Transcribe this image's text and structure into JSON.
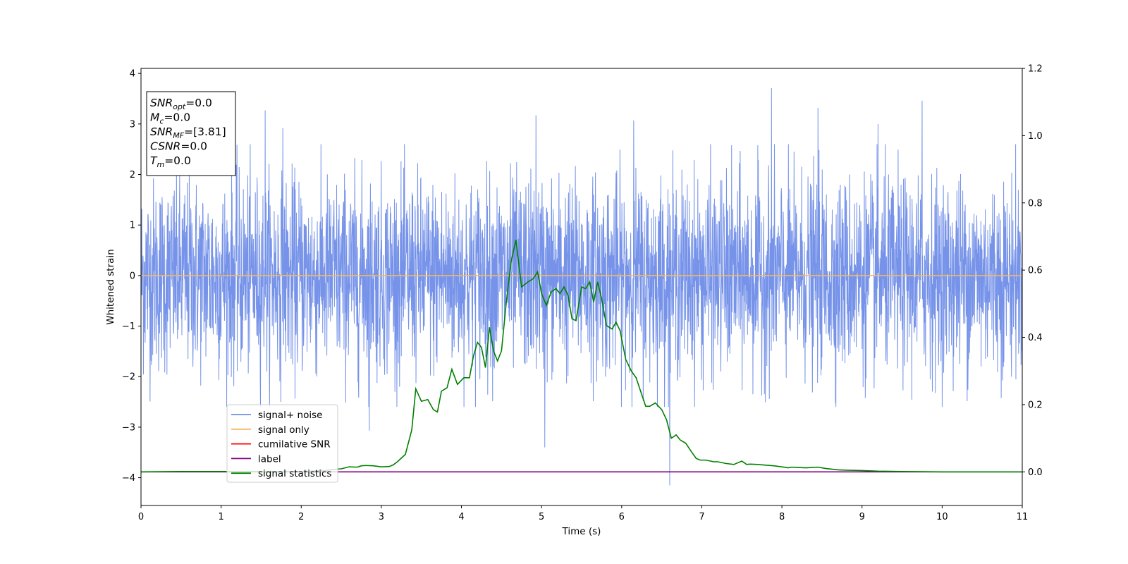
{
  "chart_data": {
    "type": "line",
    "xlabel": "Time (s)",
    "ylabel": "Whitened strain",
    "xlim": [
      0,
      11
    ],
    "ylim_left": [
      -4.55,
      4.1
    ],
    "ylim_right": [
      -0.1,
      1.2
    ],
    "x_ticks": [
      "0",
      "1",
      "2",
      "3",
      "4",
      "5",
      "6",
      "7",
      "8",
      "9",
      "10",
      "11"
    ],
    "y_ticks_left": [
      "−4",
      "−3",
      "−2",
      "−1",
      "0",
      "1",
      "2",
      "3",
      "4"
    ],
    "y_ticks_right": [
      "0.0",
      "0.2",
      "0.4",
      "0.6",
      "0.8",
      "1.0",
      "1.2"
    ],
    "colors": {
      "signal_noise": "#6f8de8",
      "signal_only": "#f5b860",
      "cumulative_snr": "#ff0000",
      "label": "#800080",
      "signal_statistics": "#008000"
    },
    "series": [
      {
        "name": "signal+ noise",
        "axis": "left",
        "description": "dense whitened noise trace, mostly within about -2.6 to 2.6",
        "envelope_range": [
          -2.6,
          2.6
        ],
        "notable_spikes": [
          {
            "x": 1.55,
            "y": 3.27
          },
          {
            "x": 1.77,
            "y": 2.92
          },
          {
            "x": 2.85,
            "y": -3.07
          },
          {
            "x": 4.93,
            "y": 3.17
          },
          {
            "x": 5.04,
            "y": -3.4
          },
          {
            "x": 6.15,
            "y": 3.07
          },
          {
            "x": 6.6,
            "y": -4.15
          },
          {
            "x": 7.87,
            "y": 3.71
          },
          {
            "x": 8.45,
            "y": 3.32
          },
          {
            "x": 9.2,
            "y": 3.0
          },
          {
            "x": 9.75,
            "y": 3.46
          },
          {
            "x": 11.0,
            "y": 2.32
          }
        ]
      },
      {
        "name": "signal only",
        "axis": "left",
        "x": [
          0,
          11
        ],
        "values": [
          0,
          0
        ]
      },
      {
        "name": "cumilative SNR",
        "axis": "right",
        "x": [],
        "values": []
      },
      {
        "name": "label",
        "axis": "right",
        "x": [
          0,
          11
        ],
        "values": [
          0,
          0
        ]
      },
      {
        "name": "signal statistics",
        "axis": "right",
        "x": [
          0,
          0.5,
          1.0,
          1.5,
          2.0,
          2.3,
          2.4,
          2.5,
          2.6,
          2.7,
          2.75,
          2.8,
          2.9,
          3.0,
          3.1,
          3.15,
          3.2,
          3.3,
          3.38,
          3.43,
          3.5,
          3.58,
          3.65,
          3.7,
          3.75,
          3.82,
          3.88,
          3.95,
          4.03,
          4.1,
          4.15,
          4.2,
          4.25,
          4.3,
          4.35,
          4.4,
          4.45,
          4.5,
          4.56,
          4.62,
          4.68,
          4.75,
          4.83,
          4.9,
          4.95,
          5.0,
          5.06,
          5.12,
          5.18,
          5.23,
          5.28,
          5.33,
          5.38,
          5.43,
          5.5,
          5.55,
          5.6,
          5.65,
          5.7,
          5.75,
          5.81,
          5.88,
          5.93,
          5.98,
          6.05,
          6.12,
          6.18,
          6.25,
          6.3,
          6.35,
          6.42,
          6.5,
          6.56,
          6.62,
          6.68,
          6.73,
          6.8,
          6.87,
          6.93,
          6.98,
          7.05,
          7.15,
          7.2,
          7.3,
          7.4,
          7.5,
          7.56,
          7.6,
          7.7,
          7.8,
          7.9,
          8.0,
          8.08,
          8.12,
          8.2,
          8.3,
          8.45,
          8.55,
          8.7,
          8.8,
          9.0,
          9.2,
          9.5,
          10.0,
          10.5,
          11.0
        ],
        "values": [
          0.0,
          0.001,
          0.001,
          0.001,
          0.001,
          0.004,
          0.007,
          0.009,
          0.015,
          0.014,
          0.018,
          0.019,
          0.018,
          0.015,
          0.016,
          0.021,
          0.03,
          0.052,
          0.125,
          0.247,
          0.21,
          0.215,
          0.185,
          0.178,
          0.24,
          0.25,
          0.305,
          0.26,
          0.28,
          0.28,
          0.345,
          0.385,
          0.37,
          0.31,
          0.43,
          0.36,
          0.33,
          0.36,
          0.505,
          0.625,
          0.69,
          0.55,
          0.565,
          0.575,
          0.595,
          0.53,
          0.495,
          0.535,
          0.545,
          0.53,
          0.55,
          0.525,
          0.455,
          0.45,
          0.55,
          0.545,
          0.565,
          0.505,
          0.565,
          0.515,
          0.435,
          0.425,
          0.445,
          0.42,
          0.335,
          0.3,
          0.28,
          0.23,
          0.195,
          0.195,
          0.205,
          0.185,
          0.155,
          0.1,
          0.11,
          0.095,
          0.085,
          0.06,
          0.04,
          0.035,
          0.035,
          0.03,
          0.03,
          0.025,
          0.022,
          0.032,
          0.022,
          0.023,
          0.022,
          0.02,
          0.018,
          0.015,
          0.012,
          0.014,
          0.013,
          0.012,
          0.014,
          0.01,
          0.006,
          0.005,
          0.004,
          0.002,
          0.001,
          0.0,
          0.0,
          0.0
        ]
      }
    ],
    "legend": {
      "placement": "lower-left",
      "entries": [
        {
          "label": "signal+ noise",
          "color": "#6f8de8"
        },
        {
          "label": "signal only",
          "color": "#f5b860"
        },
        {
          "label": "cumilative SNR",
          "color": "#ff0000"
        },
        {
          "label": "label",
          "color": "#800080"
        },
        {
          "label": "signal statistics",
          "color": "#008000"
        }
      ]
    },
    "info_box": {
      "placement": "top-left",
      "lines": [
        {
          "base": "SNR",
          "sub": "opt",
          "value": "=0.0"
        },
        {
          "base": "M",
          "sub": "c",
          "value": "=0.0"
        },
        {
          "base": "SNR",
          "sub": "MF",
          "value": "=[3.81]"
        },
        {
          "base": "CSNR",
          "sub": "",
          "value": "=0.0"
        },
        {
          "base": "T",
          "sub": "m",
          "value": "=0.0"
        }
      ]
    }
  }
}
